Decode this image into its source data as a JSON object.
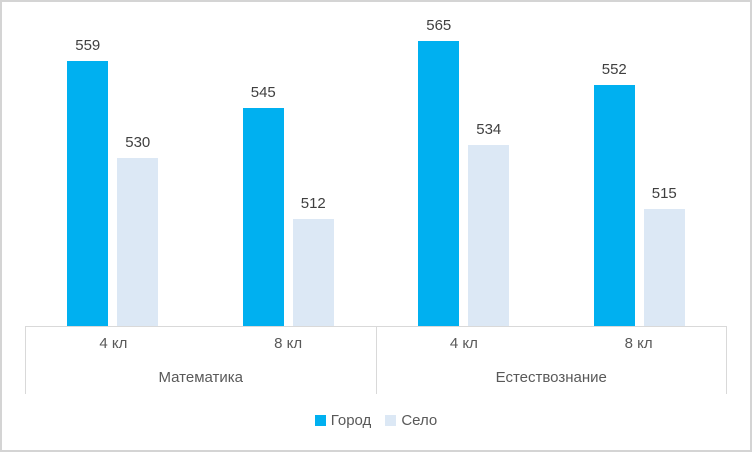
{
  "chart_data": {
    "type": "bar",
    "title": "",
    "categories": [
      "4 кл",
      "8 кл",
      "4 кл",
      "8 кл"
    ],
    "category_groups": [
      "Математика",
      "Естествознание"
    ],
    "series": [
      {
        "name": "Город",
        "values": [
          559,
          545,
          565,
          552
        ],
        "color": "#00b0f0"
      },
      {
        "name": "Село",
        "values": [
          530,
          512,
          534,
          515
        ],
        "color": "#dce8f5"
      }
    ],
    "ylim": [
      480,
      568
    ],
    "value_axis_visible": false,
    "gridlines": false,
    "data_labels": true,
    "legend_position": "bottom"
  },
  "styles": {
    "frame_border_color": "#d4d4d4",
    "axis_line_color": "#d9d9d9",
    "data_label_color": "#404040",
    "axis_text_color": "#595959"
  }
}
